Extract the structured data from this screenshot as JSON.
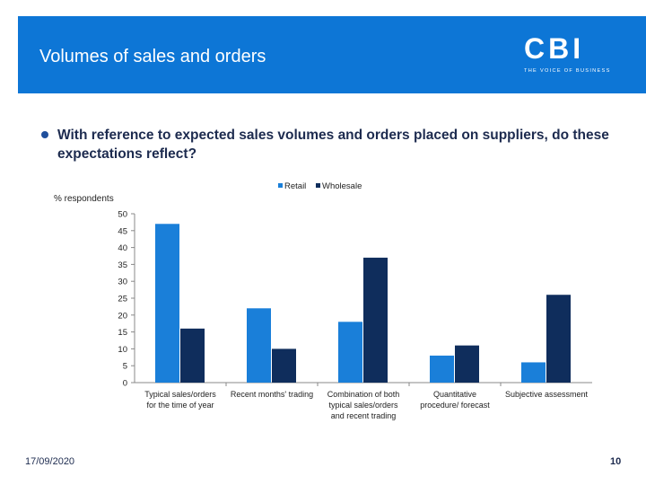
{
  "header": {
    "title": "Volumes of sales and orders",
    "logo_text": "CBI",
    "logo_tagline": "THE VOICE OF BUSINESS"
  },
  "question": "With reference to expected sales volumes and orders placed on suppliers, do these expectations reflect?",
  "footer": {
    "date": "17/09/2020",
    "page": "10"
  },
  "colors": {
    "header": "#0d76d6",
    "retail": "#1a7fd9",
    "wholesale": "#0f2d5c"
  },
  "chart_data": {
    "type": "bar",
    "title": "",
    "ylabel": "% respondents",
    "xlabel": "",
    "ylim": [
      0,
      50
    ],
    "yticks": [
      "50",
      "45",
      "40",
      "35",
      "30",
      "25",
      "20",
      "15",
      "10",
      "5",
      "0"
    ],
    "legend_position": "top",
    "categories": [
      [
        "Typical sales/orders",
        "for the time of year"
      ],
      [
        "Recent months' trading"
      ],
      [
        "Combination of both",
        "typical sales/orders",
        "and recent trading"
      ],
      [
        "Quantitative",
        "procedure/ forecast"
      ],
      [
        "Subjective assessment"
      ]
    ],
    "series": [
      {
        "name": "Retail",
        "values": [
          47,
          22,
          18,
          8,
          6
        ]
      },
      {
        "name": "Wholesale",
        "values": [
          16,
          10,
          37,
          11,
          26
        ]
      }
    ]
  }
}
